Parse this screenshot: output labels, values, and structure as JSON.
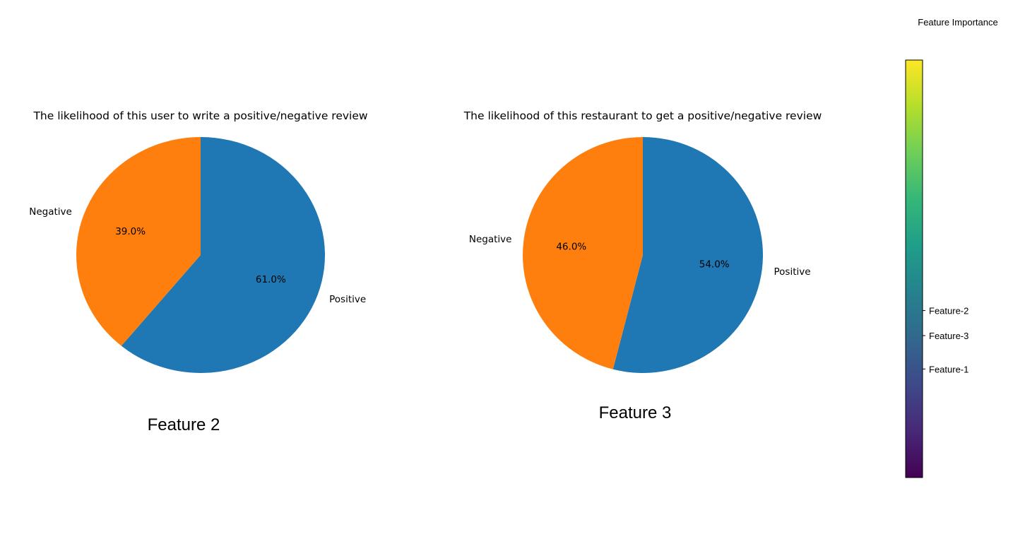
{
  "chart_data": [
    {
      "type": "pie",
      "title": "The likelihood of this user to write a positive/negative review",
      "categories": [
        "Positive",
        "Negative"
      ],
      "values": [
        61.0,
        39.0
      ],
      "value_labels": [
        "61.0%",
        "39.0%"
      ],
      "colors": [
        "#1f77b4",
        "#ff7f0e"
      ],
      "caption": "Feature 2"
    },
    {
      "type": "pie",
      "title": "The likelihood of this restaurant to get a positive/negative review",
      "categories": [
        "Positive",
        "Negative"
      ],
      "values": [
        54.0,
        46.0
      ],
      "value_labels": [
        "54.0%",
        "46.0%"
      ],
      "colors": [
        "#1f77b4",
        "#ff7f0e"
      ],
      "caption": "Feature 3"
    },
    {
      "type": "colorbar",
      "title": "Feature Importance",
      "colormap": "viridis",
      "colormap_stops": [
        "#440154",
        "#482878",
        "#3e4989",
        "#31688e",
        "#26828e",
        "#1f9e89",
        "#35b779",
        "#6ece58",
        "#b5de2b",
        "#fde725"
      ],
      "ticks": [
        {
          "label": "Feature-2",
          "value": 0.4
        },
        {
          "label": "Feature-3",
          "value": 0.34
        },
        {
          "label": "Feature-1",
          "value": 0.26
        }
      ]
    }
  ]
}
